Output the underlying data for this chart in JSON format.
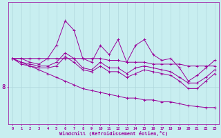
{
  "xlabel": "Windchill (Refroidissement éolien,°C)",
  "background_color": "#c8eef0",
  "grid_color": "#b0d8dc",
  "line_color": "#990099",
  "x": [
    0,
    1,
    2,
    3,
    4,
    5,
    6,
    7,
    8,
    9,
    10,
    11,
    12,
    13,
    14,
    15,
    16,
    17,
    18,
    19,
    20,
    21,
    22,
    23
  ],
  "line_jagged": [
    9.5,
    9.5,
    9.3,
    9.2,
    9.5,
    10.2,
    11.5,
    11.0,
    9.5,
    9.3,
    10.2,
    9.7,
    10.5,
    9.3,
    10.2,
    10.5,
    9.7,
    9.4,
    9.5,
    9.0,
    8.3,
    8.6,
    9.0,
    9.4
  ],
  "line_mid1": [
    9.5,
    9.3,
    9.2,
    9.1,
    9.1,
    9.3,
    9.8,
    9.5,
    9.0,
    8.9,
    9.3,
    9.0,
    9.0,
    8.7,
    9.0,
    9.1,
    9.0,
    8.9,
    8.8,
    8.5,
    8.2,
    8.2,
    8.5,
    8.9
  ],
  "line_mid2": [
    9.5,
    9.2,
    9.1,
    9.0,
    9.0,
    9.1,
    9.6,
    9.3,
    8.9,
    8.8,
    9.1,
    8.8,
    8.8,
    8.5,
    8.7,
    8.9,
    8.8,
    8.7,
    8.6,
    8.3,
    7.9,
    7.9,
    8.3,
    8.7
  ],
  "line_top_decline": [
    9.5,
    9.5,
    9.5,
    9.5,
    9.5,
    9.5,
    9.5,
    9.5,
    9.5,
    9.5,
    9.5,
    9.4,
    9.4,
    9.3,
    9.3,
    9.3,
    9.2,
    9.2,
    9.2,
    9.2,
    9.1,
    9.1,
    9.1,
    9.1
  ],
  "line_bot_decline": [
    9.5,
    9.3,
    9.1,
    8.9,
    8.7,
    8.5,
    8.3,
    8.1,
    7.9,
    7.8,
    7.7,
    7.6,
    7.5,
    7.4,
    7.4,
    7.3,
    7.3,
    7.2,
    7.2,
    7.1,
    7.0,
    6.95,
    6.9,
    6.9
  ],
  "ylim": [
    6.0,
    12.5
  ],
  "ytick_value": 8,
  "xlim": [
    -0.5,
    23.5
  ]
}
